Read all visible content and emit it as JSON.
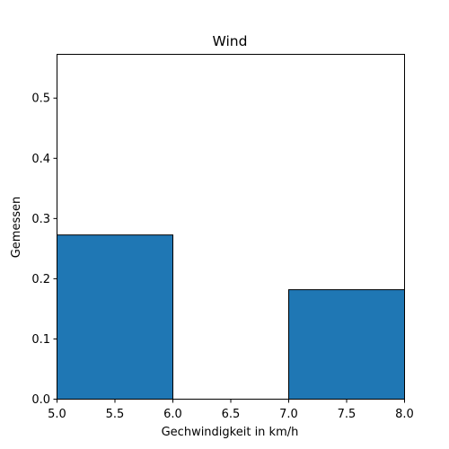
{
  "chart_data": {
    "type": "bar",
    "title": "Wind",
    "xlabel": "Gechwindigkeit in km/h",
    "ylabel": "Gemessen",
    "xlim": [
      5.0,
      8.0
    ],
    "ylim": [
      0.0,
      0.5727
    ],
    "bins": [
      {
        "x0": 5.0,
        "x1": 6.0,
        "value": 0.2727
      },
      {
        "x0": 6.0,
        "x1": 7.0,
        "value": 0.0
      },
      {
        "x0": 7.0,
        "x1": 8.0,
        "value": 0.1818
      }
    ],
    "xticks": [
      5.0,
      5.5,
      6.0,
      6.5,
      7.0,
      7.5,
      8.0
    ],
    "xtick_labels": [
      "5.0",
      "5.5",
      "6.0",
      "6.5",
      "7.0",
      "7.5",
      "8.0"
    ],
    "yticks": [
      0.0,
      0.1,
      0.2,
      0.3,
      0.4,
      0.5
    ],
    "ytick_labels": [
      "0.0",
      "0.1",
      "0.2",
      "0.3",
      "0.4",
      "0.5"
    ],
    "bar_color": "#1f77b4",
    "edge_color": "#000000",
    "grid": false,
    "legend": "none"
  }
}
